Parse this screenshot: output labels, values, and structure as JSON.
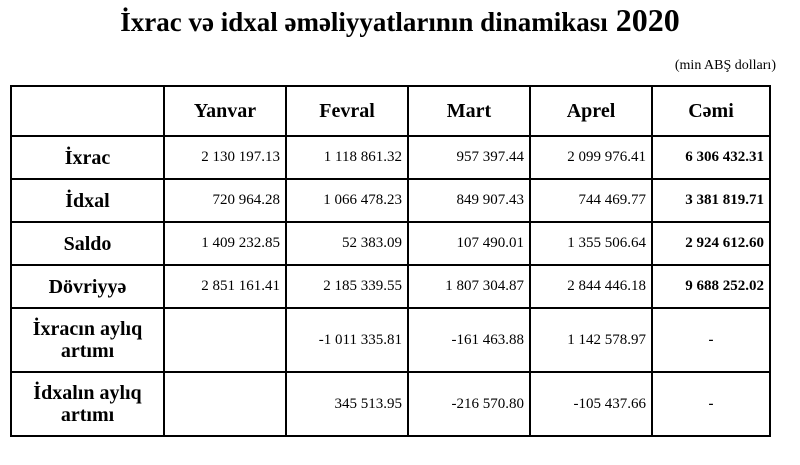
{
  "title": "İxrac və idxal əməliyyatlarının dinamikası",
  "year": "2020",
  "unit": "(min ABŞ dolları)",
  "columns": [
    "Yanvar",
    "Fevral",
    "Mart",
    "Aprel",
    "Cəmi"
  ],
  "rows": [
    {
      "label": "İxrac",
      "values": [
        "2 130 197.13",
        "1 118 861.32",
        "957 397.44",
        "2 099 976.41",
        "6 306 432.31"
      ]
    },
    {
      "label": "İdxal",
      "values": [
        "720 964.28",
        "1 066 478.23",
        "849 907.43",
        "744 469.77",
        "3 381 819.71"
      ]
    },
    {
      "label": "Saldo",
      "values": [
        "1 409 232.85",
        "52 383.09",
        "107 490.01",
        "1 355 506.64",
        "2 924 612.60"
      ]
    },
    {
      "label": "Dövriyyə",
      "values": [
        "2 851 161.41",
        "2 185 339.55",
        "1 807 304.87",
        "2 844 446.18",
        "9 688 252.02"
      ]
    },
    {
      "label": "İxracın aylıq artımı",
      "values": [
        "",
        "-1 011 335.81",
        "-161 463.88",
        "1 142 578.97",
        "-"
      ]
    },
    {
      "label": "İdxalın aylıq artımı",
      "values": [
        "",
        "345 513.95",
        "-216 570.80",
        "-105 437.66",
        "-"
      ]
    }
  ]
}
